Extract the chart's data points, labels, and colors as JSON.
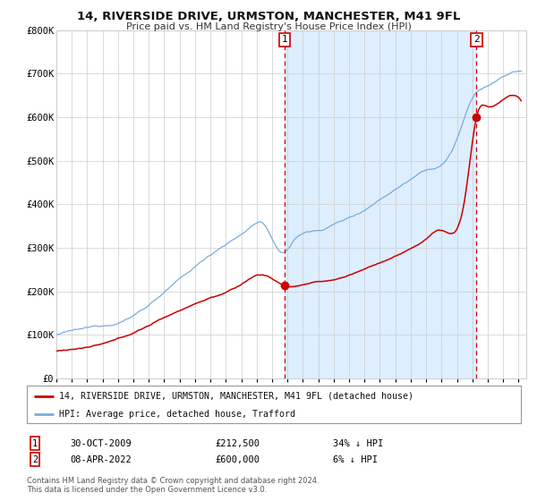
{
  "title": "14, RIVERSIDE DRIVE, URMSTON, MANCHESTER, M41 9FL",
  "subtitle": "Price paid vs. HM Land Registry's House Price Index (HPI)",
  "legend_red": "14, RIVERSIDE DRIVE, URMSTON, MANCHESTER, M41 9FL (detached house)",
  "legend_blue": "HPI: Average price, detached house, Trafford",
  "annotation1_date": "30-OCT-2009",
  "annotation1_price": "£212,500",
  "annotation1_pct": "34% ↓ HPI",
  "annotation2_date": "08-APR-2022",
  "annotation2_price": "£600,000",
  "annotation2_pct": "6% ↓ HPI",
  "footer1": "Contains HM Land Registry data © Crown copyright and database right 2024.",
  "footer2": "This data is licensed under the Open Government Licence v3.0.",
  "red_color": "#cc0000",
  "blue_color": "#7aaadd",
  "shade_color": "#ddeeff",
  "grid_color": "#cccccc",
  "bg_color": "#ffffff",
  "ytick_labels": [
    "£0",
    "£100K",
    "£200K",
    "£300K",
    "£400K",
    "£500K",
    "£600K",
    "£700K",
    "£800K"
  ],
  "ytick_values": [
    0,
    100000,
    200000,
    300000,
    400000,
    500000,
    600000,
    700000,
    800000
  ],
  "ylim": [
    0,
    800000
  ],
  "xlim_start": 1995.0,
  "xlim_end": 2025.5,
  "marker1_x": 2009.83,
  "marker1_y": 212500,
  "marker2_x": 2022.27,
  "marker2_y": 600000
}
